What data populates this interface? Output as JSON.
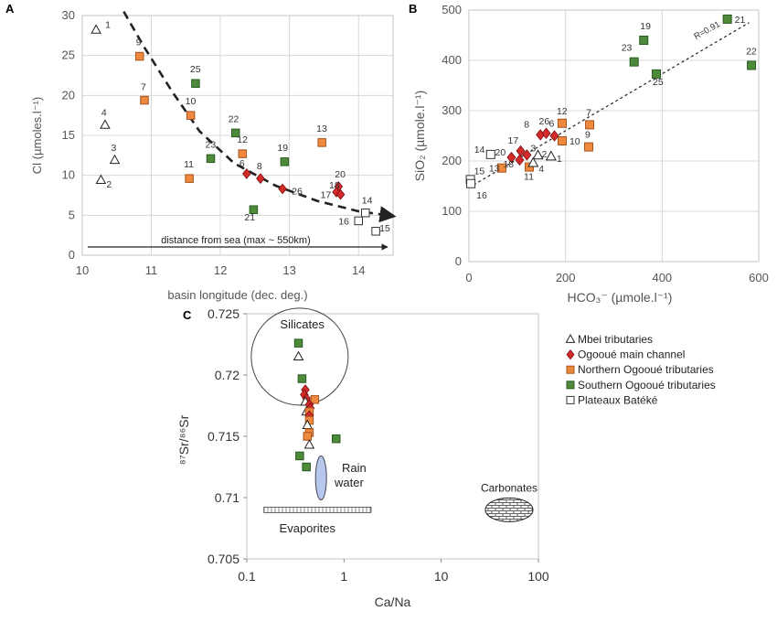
{
  "colors": {
    "mbei": "#ffffff",
    "main": "#d42a2a",
    "north": "#f0883e",
    "south": "#4d8a3a",
    "plateaux": "#ffffff",
    "rain": "#b8c8ec"
  },
  "legend": {
    "items": [
      {
        "key": "mbei",
        "shape": "triangle",
        "label": "Mbei tributaries"
      },
      {
        "key": "main",
        "shape": "diamond",
        "label": "Ogooué main channel"
      },
      {
        "key": "north",
        "shape": "square",
        "label": "Northern Ogooué tributaries"
      },
      {
        "key": "south",
        "shape": "square",
        "label": "Southern Ogooué tributaries"
      },
      {
        "key": "plateaux",
        "shape": "square",
        "label": "Plateaux Batéké"
      }
    ]
  },
  "chart_data": [
    {
      "panel": "A",
      "type": "scatter",
      "xlabel": "basin longitude (dec. deg.)",
      "ylabel": "Cl (µmoles.l⁻¹)",
      "xlim": [
        10,
        14.5
      ],
      "ylim": [
        0,
        30
      ],
      "xticks": [
        "10",
        "11",
        "12",
        "13",
        "14"
      ],
      "yticks": [
        "0",
        "5",
        "10",
        "15",
        "20",
        "25",
        "30"
      ],
      "grid": true,
      "annotation": "distance from sea (max ~ 550km)",
      "trend": [
        [
          10.6,
          30.5
        ],
        [
          10.9,
          26
        ],
        [
          11.3,
          20.5
        ],
        [
          11.7,
          15.5
        ],
        [
          12.2,
          11.5
        ],
        [
          12.8,
          8.7
        ],
        [
          13.4,
          6.8
        ],
        [
          14.0,
          5.5
        ],
        [
          14.5,
          4.9
        ]
      ],
      "points": [
        {
          "label": "1",
          "group": "mbei",
          "x": 10.2,
          "y": 28.2
        },
        {
          "label": "2",
          "group": "mbei",
          "x": 10.27,
          "y": 9.4
        },
        {
          "label": "3",
          "group": "mbei",
          "x": 10.47,
          "y": 11.9
        },
        {
          "label": "4",
          "group": "mbei",
          "x": 10.33,
          "y": 16.3
        },
        {
          "label": "7",
          "group": "north",
          "x": 10.9,
          "y": 19.4
        },
        {
          "label": "9",
          "group": "north",
          "x": 10.83,
          "y": 24.9
        },
        {
          "label": "10",
          "group": "north",
          "x": 11.57,
          "y": 17.5
        },
        {
          "label": "11",
          "group": "north",
          "x": 11.55,
          "y": 9.6
        },
        {
          "label": "12",
          "group": "north",
          "x": 12.32,
          "y": 12.7
        },
        {
          "label": "13",
          "group": "north",
          "x": 13.47,
          "y": 14.1
        },
        {
          "label": "25",
          "group": "south",
          "x": 11.64,
          "y": 21.5
        },
        {
          "label": "23",
          "group": "south",
          "x": 11.86,
          "y": 12.1
        },
        {
          "label": "22",
          "group": "south",
          "x": 12.22,
          "y": 15.3
        },
        {
          "label": "21",
          "group": "south",
          "x": 12.48,
          "y": 5.7
        },
        {
          "label": "19",
          "group": "south",
          "x": 12.93,
          "y": 11.7
        },
        {
          "label": "6",
          "group": "main",
          "x": 12.38,
          "y": 10.2
        },
        {
          "label": "8",
          "group": "main",
          "x": 12.58,
          "y": 9.6
        },
        {
          "label": "26",
          "group": "main",
          "x": 12.9,
          "y": 8.3
        },
        {
          "label": "20",
          "group": "main",
          "x": 13.71,
          "y": 8.6
        },
        {
          "label": "18",
          "group": "main",
          "x": 13.68,
          "y": 7.9
        },
        {
          "label": "17",
          "group": "main",
          "x": 13.74,
          "y": 7.6
        },
        {
          "label": "14",
          "group": "plateaux",
          "x": 14.1,
          "y": 5.3
        },
        {
          "label": "16",
          "group": "plateaux",
          "x": 14.0,
          "y": 4.3
        },
        {
          "label": "15",
          "group": "plateaux",
          "x": 14.25,
          "y": 3.0
        }
      ]
    },
    {
      "panel": "B",
      "type": "scatter",
      "xlabel": "HCO₃⁻ (µmole.l⁻¹)",
      "ylabel": "SiO₂ (µmole.l⁻¹)",
      "xlim": [
        0,
        600
      ],
      "ylim": [
        0,
        500
      ],
      "xticks": [
        "0",
        "200",
        "400",
        "600"
      ],
      "yticks": [
        "0",
        "100",
        "200",
        "300",
        "400",
        "500"
      ],
      "grid": true,
      "regression_label": "R=0.91",
      "regression": [
        [
          0,
          147
        ],
        [
          580,
          475
        ]
      ],
      "points": [
        {
          "label": "21",
          "group": "south",
          "x": 535,
          "y": 482
        },
        {
          "label": "22",
          "group": "south",
          "x": 585,
          "y": 390
        },
        {
          "label": "19",
          "group": "south",
          "x": 362,
          "y": 440
        },
        {
          "label": "23",
          "group": "south",
          "x": 342,
          "y": 397
        },
        {
          "label": "25",
          "group": "south",
          "x": 388,
          "y": 373
        },
        {
          "label": "12",
          "group": "north",
          "x": 193,
          "y": 275
        },
        {
          "label": "7",
          "group": "north",
          "x": 250,
          "y": 272
        },
        {
          "label": "10",
          "group": "north",
          "x": 193,
          "y": 240
        },
        {
          "label": "9",
          "group": "north",
          "x": 248,
          "y": 228
        },
        {
          "label": "13",
          "group": "north",
          "x": 68,
          "y": 186
        },
        {
          "label": "11",
          "group": "north",
          "x": 125,
          "y": 188
        },
        {
          "label": "8",
          "group": "main",
          "x": 148,
          "y": 252
        },
        {
          "label": "26",
          "group": "main",
          "x": 160,
          "y": 255
        },
        {
          "label": "6",
          "group": "main",
          "x": 177,
          "y": 250
        },
        {
          "label": "17",
          "group": "main",
          "x": 107,
          "y": 220
        },
        {
          "label": "20",
          "group": "main",
          "x": 88,
          "y": 207
        },
        {
          "label": "3",
          "group": "main",
          "x": 120,
          "y": 212
        },
        {
          "label": "18",
          "group": "main",
          "x": 105,
          "y": 202
        },
        {
          "label": "2",
          "group": "mbei",
          "x": 143,
          "y": 211
        },
        {
          "label": "1",
          "group": "mbei",
          "x": 170,
          "y": 209
        },
        {
          "label": "4",
          "group": "mbei",
          "x": 133,
          "y": 196
        },
        {
          "label": "14",
          "group": "plateaux",
          "x": 45,
          "y": 213
        },
        {
          "label": "15",
          "group": "plateaux",
          "x": 3,
          "y": 163
        },
        {
          "label": "16",
          "group": "plateaux",
          "x": 4,
          "y": 155
        }
      ]
    },
    {
      "panel": "C",
      "type": "scatter",
      "xlabel": "Ca/Na",
      "ylabel": "⁸⁷Sr/⁸⁶Sr",
      "xscale": "log",
      "xlim": [
        0.1,
        100
      ],
      "ylim": [
        0.705,
        0.725
      ],
      "xticks": [
        "0.1",
        "1",
        "10",
        "100"
      ],
      "yticks": [
        "0.705",
        "0.71",
        "0.715",
        "0.72",
        "0.725"
      ],
      "grid": false,
      "fields": [
        {
          "name": "Silicates",
          "shape": "circle",
          "cx": 0.35,
          "cy": 0.7215,
          "label_x": 0.22,
          "label_y": 0.7238
        },
        {
          "name": "Rain water",
          "shape": "ellipse",
          "cx": 0.58,
          "cy": 0.7116,
          "label_x": 0.8,
          "label_y": 0.7115
        },
        {
          "name": "Evaporites",
          "shape": "band",
          "x0": 0.15,
          "x1": 1.9,
          "y": 0.709,
          "label_x": 0.42,
          "label_y": 0.7082
        },
        {
          "name": "Carbonates",
          "shape": "hatched-ellipse",
          "cx": 50,
          "cy": 0.709,
          "label_x": 50,
          "label_y": 0.7105
        }
      ],
      "points": [
        {
          "group": "south",
          "x": 0.34,
          "y": 0.7226
        },
        {
          "group": "mbei",
          "x": 0.34,
          "y": 0.7215
        },
        {
          "group": "south",
          "x": 0.37,
          "y": 0.7197
        },
        {
          "group": "main",
          "x": 0.4,
          "y": 0.7188
        },
        {
          "group": "main",
          "x": 0.39,
          "y": 0.7184
        },
        {
          "group": "main",
          "x": 0.41,
          "y": 0.7181
        },
        {
          "group": "north",
          "x": 0.5,
          "y": 0.718
        },
        {
          "group": "mbei",
          "x": 0.4,
          "y": 0.7178
        },
        {
          "group": "main",
          "x": 0.44,
          "y": 0.7176
        },
        {
          "group": "main",
          "x": 0.45,
          "y": 0.7173
        },
        {
          "group": "mbei",
          "x": 0.41,
          "y": 0.717
        },
        {
          "group": "north",
          "x": 0.44,
          "y": 0.717
        },
        {
          "group": "main",
          "x": 0.44,
          "y": 0.7167
        },
        {
          "group": "north",
          "x": 0.44,
          "y": 0.7163
        },
        {
          "group": "mbei",
          "x": 0.42,
          "y": 0.7159
        },
        {
          "group": "north",
          "x": 0.44,
          "y": 0.7153
        },
        {
          "group": "north",
          "x": 0.42,
          "y": 0.715
        },
        {
          "group": "south",
          "x": 0.83,
          "y": 0.7148
        },
        {
          "group": "mbei",
          "x": 0.44,
          "y": 0.7143
        },
        {
          "group": "south",
          "x": 0.35,
          "y": 0.7134
        },
        {
          "group": "south",
          "x": 0.41,
          "y": 0.7125
        }
      ]
    }
  ]
}
